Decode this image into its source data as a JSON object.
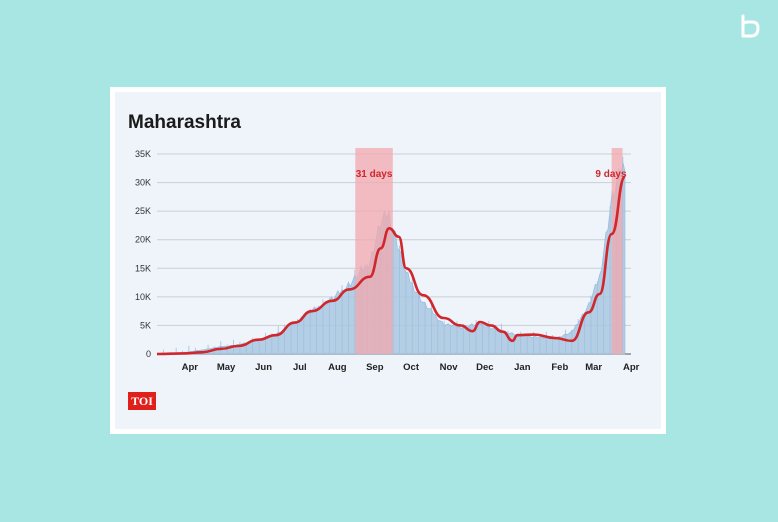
{
  "title": "Maharashtra",
  "publisher_badge": "TOI",
  "colors": {
    "background": "#a8e6e4",
    "card": "#ffffff",
    "panel": "#eef4fa",
    "line": "#d0272c",
    "bars": "#a9c7e2",
    "highlight": "#f2a8ae",
    "annotation": "#d0272c"
  },
  "chart_data": {
    "type": "area",
    "title": "Maharashtra",
    "xlabel": "",
    "ylabel": "",
    "ylim": [
      0,
      35000
    ],
    "y_ticks": [
      0,
      5000,
      10000,
      15000,
      20000,
      25000,
      30000,
      35000
    ],
    "y_tick_labels": [
      "0",
      "5K",
      "10K",
      "15K",
      "20K",
      "25K",
      "30K",
      "35K"
    ],
    "x_tick_labels": [
      "Apr",
      "May",
      "Jun",
      "Jul",
      "Aug",
      "Sep",
      "Oct",
      "Nov",
      "Dec",
      "Jan",
      "Feb",
      "Mar",
      "Apr"
    ],
    "grid": true,
    "series": [
      {
        "kind": "daily_cases",
        "x": [
          "2020-03-09",
          "2020-04-01",
          "2020-04-15",
          "2020-05-01",
          "2020-05-15",
          "2020-06-01",
          "2020-06-15",
          "2020-07-01",
          "2020-07-15",
          "2020-08-01",
          "2020-08-15",
          "2020-09-01",
          "2020-09-10",
          "2020-09-17",
          "2020-10-01",
          "2020-10-15",
          "2020-11-01",
          "2020-11-15",
          "2020-12-01",
          "2020-12-15",
          "2021-01-01",
          "2021-01-15",
          "2021-02-01",
          "2021-02-15",
          "2021-03-01",
          "2021-03-10",
          "2021-03-20",
          "2021-03-31"
        ],
        "values": [
          0,
          300,
          700,
          1300,
          1600,
          2400,
          3400,
          5500,
          7500,
          9600,
          12200,
          16000,
          23000,
          24500,
          14000,
          9000,
          5200,
          4700,
          5300,
          4200,
          3400,
          3000,
          2700,
          3800,
          8500,
          13500,
          27000,
          34000
        ]
      },
      {
        "kind": "7_day_average",
        "x": [
          "2020-03-09",
          "2020-04-01",
          "2020-04-15",
          "2020-05-01",
          "2020-05-15",
          "2020-06-01",
          "2020-06-15",
          "2020-07-01",
          "2020-07-15",
          "2020-08-01",
          "2020-08-15",
          "2020-09-01",
          "2020-09-10",
          "2020-09-17",
          "2020-09-25",
          "2020-10-01",
          "2020-10-15",
          "2020-11-01",
          "2020-11-15",
          "2020-11-25",
          "2020-12-01",
          "2020-12-10",
          "2020-12-20",
          "2020-12-28",
          "2021-01-01",
          "2021-01-15",
          "2021-02-01",
          "2021-02-15",
          "2021-03-01",
          "2021-03-10",
          "2021-03-20",
          "2021-03-31"
        ],
        "values": [
          0,
          100,
          300,
          900,
          1400,
          2500,
          3300,
          5500,
          7500,
          9300,
          11300,
          13500,
          18500,
          22000,
          20500,
          15000,
          10300,
          6300,
          5000,
          4000,
          5600,
          5000,
          3900,
          2300,
          3300,
          3400,
          2800,
          2300,
          7300,
          10500,
          21000,
          31000
        ]
      }
    ],
    "highlight_periods": [
      {
        "start": "2020-08-20",
        "end": "2020-09-20",
        "label": "31 days"
      },
      {
        "start": "2021-03-20",
        "end": "2021-03-29",
        "label": "9 days"
      }
    ]
  }
}
